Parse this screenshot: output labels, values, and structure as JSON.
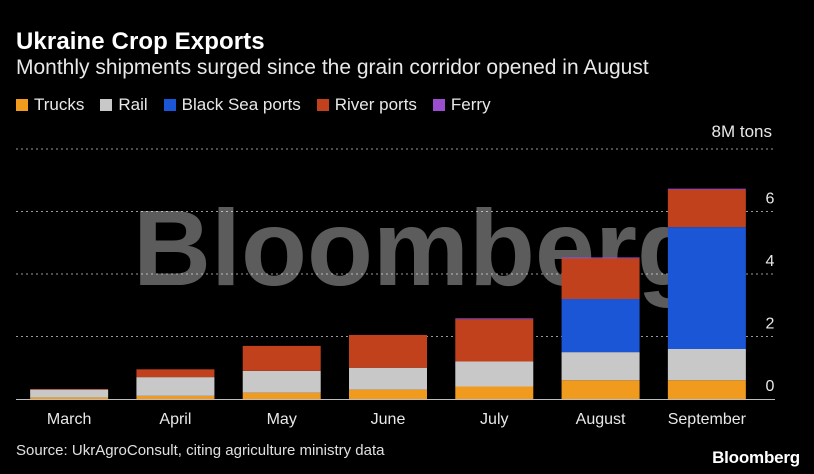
{
  "header": {
    "title": "Ukraine Crop Exports",
    "subtitle": "Monthly shipments surged since the grain corridor opened in August"
  },
  "unit_label": "8M tons",
  "source": "Source: UkrAgroConsult, citing agriculture ministry data",
  "brand": "Bloomberg",
  "watermark": "Bloomberg",
  "chart_data": {
    "type": "bar",
    "stacked": true,
    "categories": [
      "March",
      "April",
      "May",
      "June",
      "July",
      "August",
      "September"
    ],
    "series": [
      {
        "name": "Trucks",
        "color": "#f09a1e",
        "values": [
          0.05,
          0.1,
          0.2,
          0.3,
          0.4,
          0.6,
          0.6
        ]
      },
      {
        "name": "Rail",
        "color": "#c8c8c8",
        "values": [
          0.25,
          0.6,
          0.7,
          0.7,
          0.8,
          0.9,
          1.0
        ]
      },
      {
        "name": "Black Sea ports",
        "color": "#1a56d6",
        "values": [
          0,
          0,
          0,
          0,
          0,
          1.7,
          3.9
        ]
      },
      {
        "name": "River ports",
        "color": "#c0411c",
        "values": [
          0.02,
          0.25,
          0.8,
          1.05,
          1.35,
          1.3,
          1.2
        ]
      },
      {
        "name": "Ferry",
        "color": "#9b4fd0",
        "values": [
          0,
          0,
          0,
          0,
          0.03,
          0.03,
          0.03
        ]
      }
    ],
    "ylim": [
      0,
      8
    ],
    "yticks": [
      0,
      2,
      4,
      6,
      8
    ],
    "ytick_labels": [
      "0",
      "2",
      "4",
      "6",
      "8M tons"
    ],
    "grid": true,
    "legend": "top-left"
  }
}
